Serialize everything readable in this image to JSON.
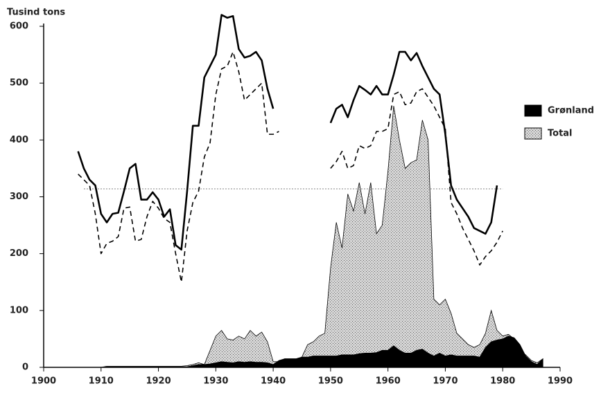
{
  "chart_data": {
    "type": "line",
    "y_label": "Tusind tons",
    "x": [
      1906,
      1907,
      1908,
      1909,
      1910,
      1911,
      1912,
      1913,
      1914,
      1915,
      1916,
      1917,
      1918,
      1919,
      1920,
      1921,
      1922,
      1923,
      1924,
      1925,
      1926,
      1927,
      1928,
      1929,
      1930,
      1931,
      1932,
      1933,
      1934,
      1935,
      1936,
      1937,
      1938,
      1939,
      1940,
      1941,
      1942,
      1943,
      1944,
      1945,
      1946,
      1947,
      1948,
      1949,
      1950,
      1951,
      1952,
      1953,
      1954,
      1955,
      1956,
      1957,
      1958,
      1959,
      1960,
      1961,
      1962,
      1963,
      1964,
      1965,
      1966,
      1967,
      1968,
      1969,
      1970,
      1971,
      1972,
      1973,
      1974,
      1975,
      1976,
      1977,
      1978,
      1979,
      1980,
      1981,
      1982,
      1983,
      1984,
      1985,
      1986,
      1987
    ],
    "series": [
      {
        "name": "Total",
        "kind": "area",
        "color": "#9a9a9a",
        "values": [
          null,
          null,
          null,
          null,
          0,
          2,
          2,
          2,
          2,
          2,
          2,
          2,
          2,
          2,
          2,
          2,
          2,
          2,
          2,
          3,
          5,
          8,
          5,
          30,
          55,
          65,
          50,
          48,
          55,
          50,
          65,
          55,
          62,
          45,
          10,
          10,
          15,
          15,
          15,
          18,
          40,
          45,
          55,
          60,
          175,
          255,
          210,
          305,
          275,
          325,
          270,
          325,
          235,
          250,
          345,
          460,
          400,
          350,
          360,
          365,
          435,
          400,
          120,
          110,
          120,
          95,
          60,
          50,
          40,
          35,
          40,
          60,
          100,
          65,
          55,
          58,
          50,
          30,
          22,
          12,
          8,
          15
        ]
      },
      {
        "name": "Grønland",
        "kind": "area",
        "color": "#000000",
        "values": [
          null,
          null,
          null,
          null,
          0,
          1,
          1,
          1,
          1,
          1,
          1,
          1,
          1,
          1,
          1,
          1,
          1,
          1,
          1,
          1,
          3,
          5,
          5,
          6,
          8,
          10,
          9,
          8,
          10,
          9,
          10,
          9,
          9,
          8,
          5,
          12,
          15,
          15,
          15,
          18,
          18,
          20,
          20,
          20,
          20,
          20,
          22,
          22,
          22,
          24,
          25,
          25,
          26,
          30,
          30,
          38,
          30,
          25,
          25,
          30,
          32,
          25,
          20,
          25,
          20,
          22,
          20,
          20,
          20,
          20,
          18,
          35,
          45,
          48,
          50,
          55,
          52,
          40,
          20,
          10,
          5,
          15
        ]
      },
      {
        "kind": "line",
        "dash": false,
        "color": "#000000",
        "values": [
          380,
          350,
          330,
          320,
          270,
          255,
          270,
          272,
          310,
          350,
          358,
          295,
          295,
          308,
          295,
          265,
          278,
          215,
          207,
          310,
          425,
          425,
          510,
          530,
          550,
          620,
          615,
          618,
          560,
          545,
          548,
          555,
          540,
          490,
          455,
          null,
          null,
          null,
          null,
          null,
          null,
          null,
          null,
          null,
          430,
          455,
          462,
          440,
          470,
          495,
          488,
          480,
          495,
          480,
          480,
          515,
          555,
          555,
          540,
          553,
          530,
          510,
          490,
          480,
          410,
          320,
          295,
          280,
          265,
          245,
          240,
          235,
          255,
          320,
          null,
          null,
          null,
          null,
          null,
          null,
          null,
          null
        ]
      },
      {
        "kind": "line",
        "dash": true,
        "color": "#000000",
        "values": [
          340,
          330,
          320,
          270,
          200,
          218,
          222,
          230,
          280,
          282,
          222,
          225,
          265,
          292,
          280,
          262,
          255,
          200,
          150,
          240,
          290,
          310,
          370,
          395,
          480,
          525,
          530,
          555,
          520,
          470,
          480,
          490,
          500,
          410,
          410,
          415,
          null,
          null,
          null,
          null,
          null,
          null,
          null,
          null,
          350,
          362,
          380,
          350,
          355,
          390,
          385,
          390,
          415,
          415,
          420,
          480,
          485,
          462,
          465,
          485,
          490,
          475,
          460,
          440,
          420,
          290,
          270,
          245,
          225,
          205,
          180,
          195,
          205,
          220,
          240,
          null,
          null,
          null,
          null,
          null,
          null,
          null
        ]
      }
    ],
    "reference_line": 314,
    "xlim": [
      1900,
      1990
    ],
    "xticks": [
      1900,
      1910,
      1920,
      1930,
      1940,
      1950,
      1960,
      1970,
      1980,
      1990
    ],
    "ylim": [
      0,
      600
    ],
    "yticks": [
      0,
      100,
      200,
      300,
      400,
      500,
      600
    ]
  }
}
